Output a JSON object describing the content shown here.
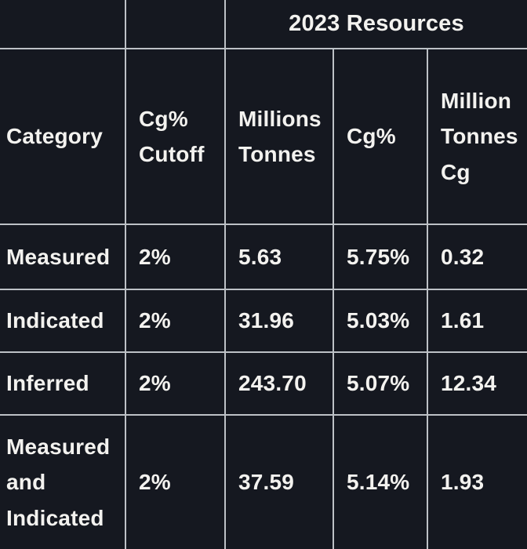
{
  "colors": {
    "background": "#151820",
    "grid_line": "#bdc1c6",
    "text": "#f3f2ef"
  },
  "table": {
    "spanner": "2023 Resources",
    "columns": [
      "Category",
      "Cg% Cutoff",
      "Millions Tonnes",
      "Cg%",
      "Million Tonnes Cg"
    ],
    "rows": [
      [
        "Measured",
        "2%",
        "5.63",
        "5.75%",
        "0.32"
      ],
      [
        "Indicated",
        "2%",
        "31.96",
        "5.03%",
        "1.61"
      ],
      [
        "Inferred",
        "2%",
        "243.70",
        "5.07%",
        "12.34"
      ],
      [
        "Measured and Indicated",
        "2%",
        "37.59",
        "5.14%",
        "1.93"
      ]
    ]
  },
  "chart_data": {
    "type": "table",
    "title": "2023 Resources",
    "columns": [
      "Category",
      "Cg% Cutoff",
      "Millions Tonnes",
      "Cg%",
      "Million Tonnes Cg"
    ],
    "rows": [
      {
        "category": "Measured",
        "cg_cutoff_pct": 2,
        "millions_tonnes": 5.63,
        "cg_pct": 5.75,
        "million_tonnes_cg": 0.32
      },
      {
        "category": "Indicated",
        "cg_cutoff_pct": 2,
        "millions_tonnes": 31.96,
        "cg_pct": 5.03,
        "million_tonnes_cg": 1.61
      },
      {
        "category": "Inferred",
        "cg_cutoff_pct": 2,
        "millions_tonnes": 243.7,
        "cg_pct": 5.07,
        "million_tonnes_cg": 12.34
      },
      {
        "category": "Measured and Indicated",
        "cg_cutoff_pct": 2,
        "millions_tonnes": 37.59,
        "cg_pct": 5.14,
        "million_tonnes_cg": 1.93
      }
    ]
  }
}
